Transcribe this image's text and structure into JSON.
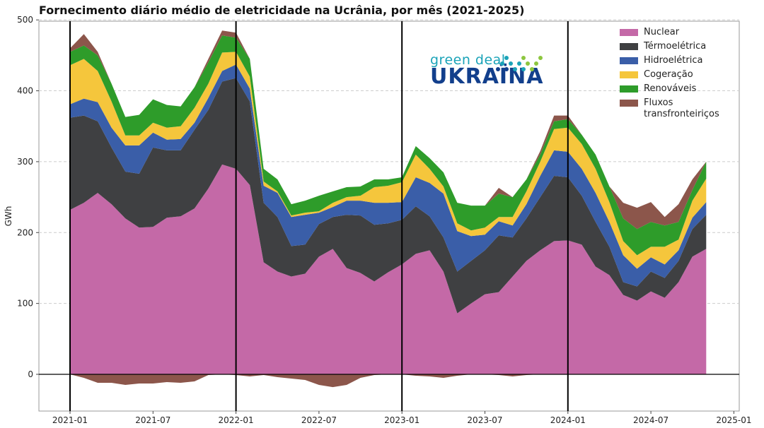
{
  "chart_data": {
    "type": "area",
    "stacked": true,
    "title": "Fornecimento diário médio de eletricidade na Ucrânia, por mês (2021-2025)",
    "ylabel": "GWh",
    "xlabel": "",
    "ylim": [
      -50,
      500
    ],
    "xlim": [
      "2020-11",
      "2025-02"
    ],
    "grid": "horizontal dashed",
    "legend_placement": "top-right",
    "x_ticks": [
      "2021-01",
      "2021-07",
      "2022-01",
      "2022-07",
      "2023-01",
      "2023-07",
      "2024-01",
      "2024-07",
      "2025-01"
    ],
    "y_ticks": [
      0,
      100,
      200,
      300,
      400,
      500
    ],
    "vertical_lines": [
      "2021-01",
      "2022-01",
      "2023-01",
      "2024-01"
    ],
    "x_start": "2021-01",
    "x_end": "2024-11",
    "series": [
      {
        "name": "Nuclear",
        "color": "#c469a7",
        "values": [
          232,
          242,
          256,
          240,
          220,
          207,
          208,
          221,
          223,
          234,
          262,
          296,
          290,
          267,
          158,
          145,
          138,
          142,
          166,
          177,
          150,
          143,
          131,
          144,
          155,
          170,
          175,
          145,
          86,
          100,
          113,
          116,
          138,
          160,
          175,
          188,
          189,
          183,
          152,
          140,
          112,
          104,
          117,
          108,
          130,
          166,
          177
        ]
      },
      {
        "name": "Térmoelétrica",
        "color": "#3f4042",
        "values": [
          130,
          123,
          101,
          80,
          66,
          76,
          112,
          95,
          93,
          111,
          111,
          117,
          128,
          118,
          84,
          77,
          43,
          41,
          46,
          45,
          75,
          81,
          80,
          69,
          63,
          67,
          48,
          48,
          59,
          60,
          62,
          80,
          55,
          60,
          75,
          92,
          89,
          69,
          63,
          40,
          18,
          20,
          28,
          28,
          30,
          39,
          48
        ]
      },
      {
        "name": "Hidroelétrica",
        "color": "#3a5ea8",
        "values": [
          19,
          24,
          27,
          28,
          37,
          40,
          21,
          15,
          16,
          10,
          17,
          15,
          19,
          18,
          24,
          34,
          41,
          42,
          16,
          14,
          20,
          21,
          31,
          29,
          25,
          41,
          47,
          62,
          57,
          35,
          22,
          20,
          17,
          20,
          30,
          36,
          36,
          38,
          41,
          35,
          38,
          25,
          20,
          19,
          15,
          16,
          18
        ]
      },
      {
        "name": "Cogeração",
        "color": "#f5c63c",
        "values": [
          55,
          56,
          44,
          37,
          14,
          14,
          14,
          17,
          18,
          21,
          20,
          26,
          18,
          17,
          6,
          2,
          2,
          3,
          2,
          6,
          5,
          7,
          22,
          24,
          28,
          32,
          20,
          10,
          11,
          8,
          10,
          6,
          12,
          18,
          20,
          30,
          34,
          35,
          34,
          28,
          20,
          19,
          15,
          25,
          15,
          24,
          33
        ]
      },
      {
        "name": "Renováveis",
        "color": "#2e9c2a",
        "values": [
          19,
          19,
          22,
          25,
          26,
          29,
          33,
          32,
          28,
          29,
          30,
          24,
          20,
          25,
          18,
          17,
          16,
          17,
          22,
          16,
          14,
          13,
          11,
          9,
          7,
          12,
          15,
          20,
          29,
          35,
          31,
          33,
          28,
          17,
          10,
          11,
          12,
          13,
          20,
          22,
          32,
          37,
          35,
          30,
          25,
          15,
          24
        ]
      },
      {
        "name": "Fluxos transfronteiriços",
        "color": "#8c564b",
        "values_positive": [
          5,
          16,
          5,
          0,
          0,
          0,
          0,
          0,
          0,
          0,
          5,
          7,
          7,
          0,
          0,
          0,
          0,
          0,
          0,
          0,
          0,
          0,
          0,
          0,
          0,
          0,
          0,
          0,
          0,
          0,
          0,
          8,
          0,
          0,
          5,
          8,
          5,
          0,
          0,
          0,
          22,
          30,
          28,
          12,
          25,
          15,
          0
        ],
        "values_negative": [
          0,
          -5,
          -12,
          -12,
          -15,
          -13,
          -13,
          -11,
          -12,
          -10,
          -1,
          0,
          -1,
          -3,
          -1,
          -4,
          -6,
          -8,
          -15,
          -18,
          -15,
          -5,
          -1,
          0,
          0,
          -2,
          -3,
          -5,
          -2,
          0,
          0,
          -1,
          -3,
          -1,
          0,
          0,
          0,
          0,
          0,
          0,
          0,
          0,
          0,
          0,
          0,
          0,
          0
        ]
      }
    ]
  },
  "logo": {
    "line1": "green deal",
    "line2": "UKRAÏNA"
  }
}
